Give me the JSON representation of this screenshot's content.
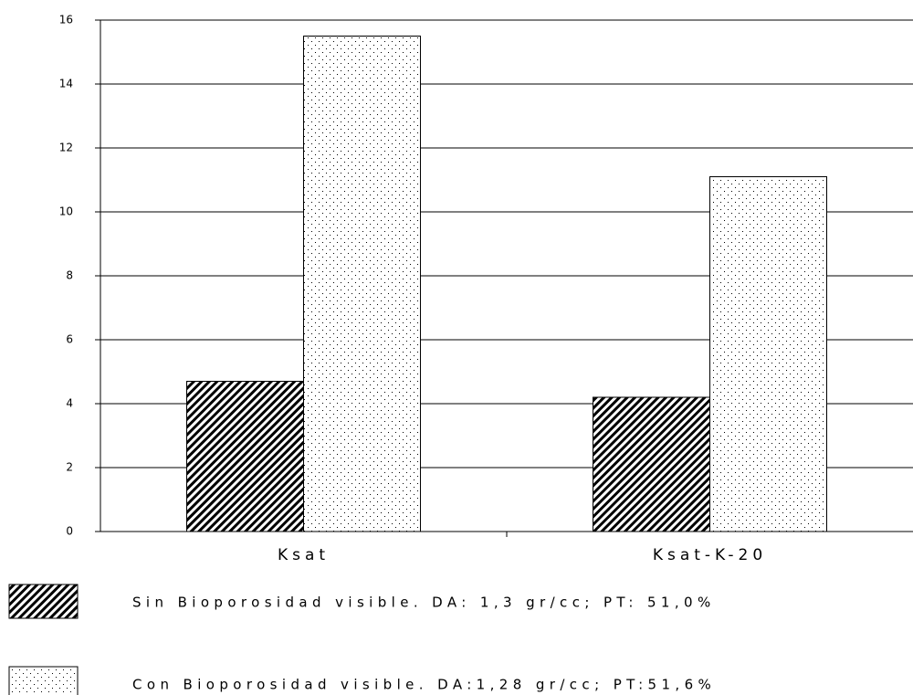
{
  "chart_data": {
    "type": "bar",
    "categories": [
      "Ksat",
      "Ksat-K-20"
    ],
    "series": [
      {
        "name": "Sin Bioporosidad visible. DA: 1,3 gr/cc;  PT: 51,0%",
        "color": "#000000",
        "pattern": "hatch",
        "values": [
          4.7,
          4.2
        ]
      },
      {
        "name": "Con Bioporosidad visible. DA:1,28 gr/cc;  PT:51,6%",
        "color": "#000000",
        "pattern": "dots",
        "values": [
          15.5,
          11.1
        ]
      }
    ],
    "ylim": [
      0,
      16
    ],
    "yticks": [
      0,
      2,
      4,
      6,
      8,
      10,
      12,
      14,
      16
    ],
    "grid": true
  }
}
